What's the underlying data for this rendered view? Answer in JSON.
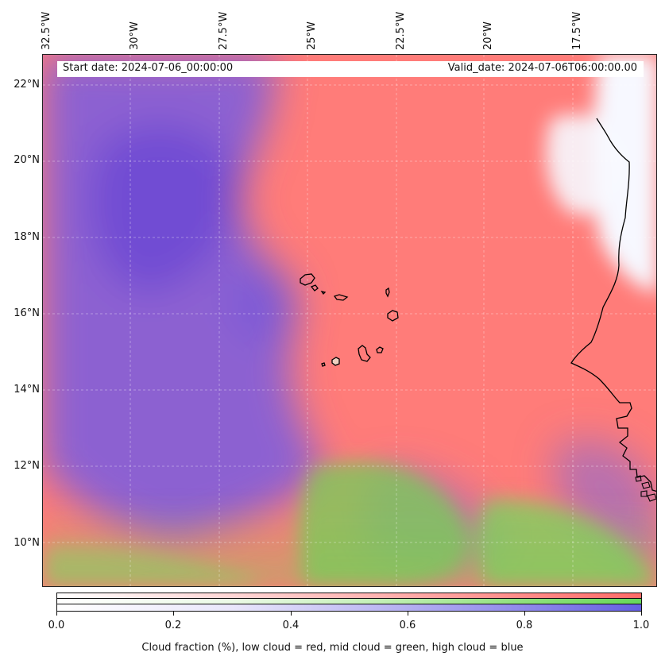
{
  "map": {
    "start_label": "Start date: 2024-07-06_00:00:00",
    "valid_label": "Valid_date: 2024-07-06T06:00:00.00",
    "lon_ticks": [
      "32.5°W",
      "30°W",
      "27.5°W",
      "25°W",
      "22.5°W",
      "20°W",
      "17.5°W"
    ],
    "lat_ticks": [
      "22°N",
      "20°N",
      "18°N",
      "16°N",
      "14°N",
      "12°N",
      "10°N"
    ],
    "gridlines": "on",
    "coastline_color": "#000000",
    "islands": [
      "Santo Antão",
      "São Vicente",
      "Santa Luzia",
      "São Nicolau",
      "Sal",
      "Boa Vista",
      "Maio",
      "Santiago",
      "Fogo",
      "Brava"
    ]
  },
  "colorbar": {
    "ticks": [
      "0.0",
      "0.2",
      "0.4",
      "0.6",
      "0.8",
      "1.0"
    ],
    "label": "Cloud fraction (%), low cloud = red, mid cloud = green, high cloud = blue",
    "channels": [
      {
        "name": "low cloud",
        "color": "#ff6b68"
      },
      {
        "name": "mid cloud",
        "color": "#67d85a"
      },
      {
        "name": "high cloud",
        "color": "#645fe1"
      }
    ]
  },
  "colors": {
    "low_cloud": "#ff7c79",
    "high_cloud": "#7a58d8",
    "mid_cloud": "#76cf57",
    "clear_sky": "#f7f8ff"
  }
}
